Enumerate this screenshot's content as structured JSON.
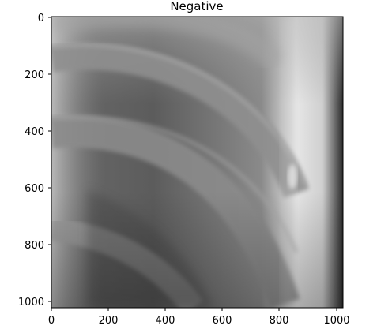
{
  "figure": {
    "title": "Negative",
    "x_ticks": [
      "0",
      "200",
      "400",
      "600",
      "800",
      "1000"
    ],
    "y_ticks": [
      "0",
      "200",
      "400",
      "600",
      "800",
      "1000"
    ],
    "colormap": "gray",
    "subject": "negative grayscale radiograph image of curved rib-like bone structures"
  }
}
